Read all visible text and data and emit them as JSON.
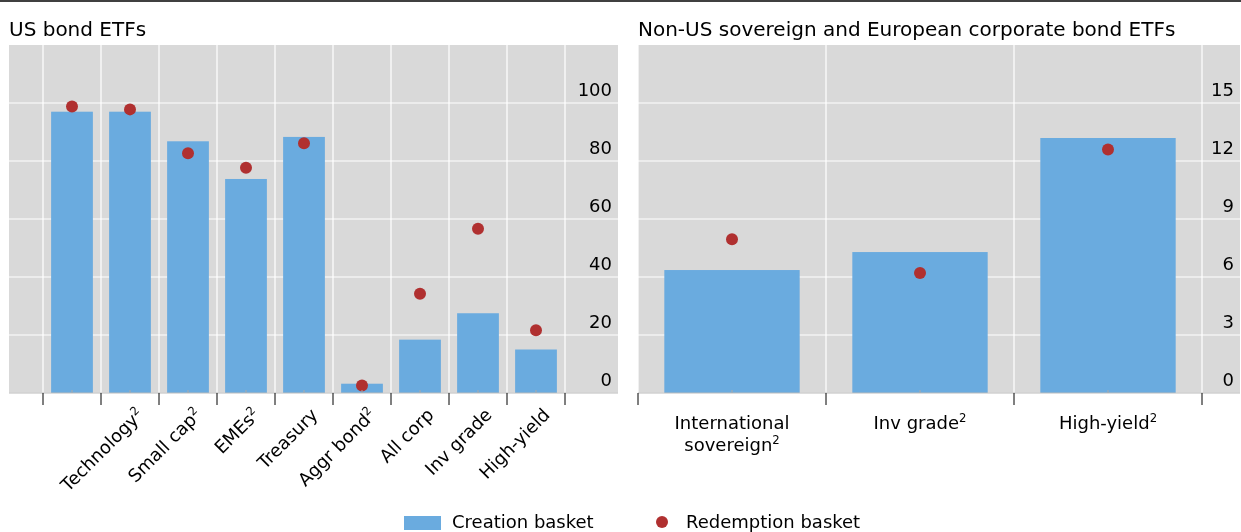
{
  "chart_data": [
    {
      "type": "bar",
      "title": "US bond ETFs",
      "categories": [
        null,
        "Technology$^{2}$",
        "Small cap$^{2}$",
        "EMEs$^{2}$",
        "Treasury",
        "Aggr bond$^{2}$",
        "All corp",
        "Inv grade",
        "High-yield"
      ],
      "series": [
        {
          "name": "Creation basket",
          "color": "#6aabdf",
          "values": [
            97,
            97,
            86.8,
            73.8,
            88.3,
            3.2,
            18.4,
            27.5,
            15
          ]
        },
        {
          "type": "scatter",
          "name": "Redemption basket",
          "color": "#b03030",
          "values": [
            98.8,
            97.8,
            82.7,
            77.7,
            86.1,
            2.6,
            34.2,
            56.6,
            21.6
          ]
        }
      ],
      "ylim": [
        0,
        120
      ],
      "yticks": [
        0,
        20,
        40,
        60,
        80,
        100
      ],
      "grid": true,
      "legend": "bottom",
      "marker": "circle"
    },
    {
      "type": "bar",
      "title": "Non-US sovereign and European corporate bond ETFs",
      "categories": [
        "International sovereign$^{2}$",
        "Inv grade$^{2}$",
        "High-yield$^{2}$"
      ],
      "series": [
        {
          "color": "#6aabdf",
          "values": [
            6.36,
            7.29,
            13.19
          ]
        },
        {
          "type": "scatter",
          "color": "#b03030",
          "values": [
            7.95,
            6.21,
            12.6
          ]
        }
      ],
      "ylim": [
        0,
        18
      ],
      "yticks": [
        0,
        3,
        6,
        9,
        12,
        15
      ],
      "grid": true,
      "marker": "circle"
    }
  ]
}
